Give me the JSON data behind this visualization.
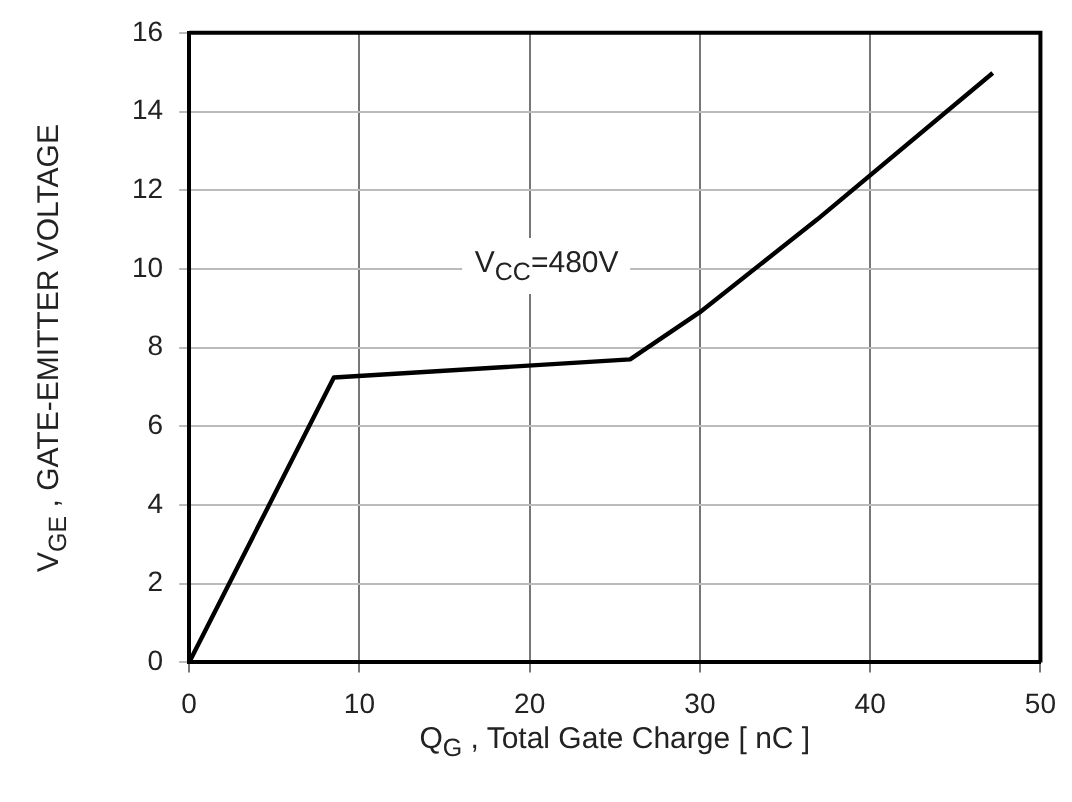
{
  "chart_data": {
    "type": "line",
    "xlabel": "Q$_{G}$ , Total Gate Charge [ nC ]",
    "ylabel": "V$_{GE}$ , GATE-EMITTER VOLTAGE",
    "annotations": [
      "V$_{CC}$=480V"
    ],
    "x": [
      0,
      8.5,
      25.9,
      30,
      36.9,
      47.2
    ],
    "series": [
      {
        "color": "#000000",
        "values": [
          0,
          7.24,
          7.7,
          8.9,
          11.26,
          14.98
        ]
      }
    ],
    "xlim": [
      0,
      50
    ],
    "xticks": [
      0,
      10,
      20,
      30,
      40,
      50
    ],
    "ylim": [
      0,
      16
    ],
    "yticks": [
      0,
      2,
      4,
      6,
      8,
      10,
      12,
      14,
      16
    ],
    "grid": true,
    "legend": false,
    "marker": "none",
    "line_style": "solid"
  }
}
